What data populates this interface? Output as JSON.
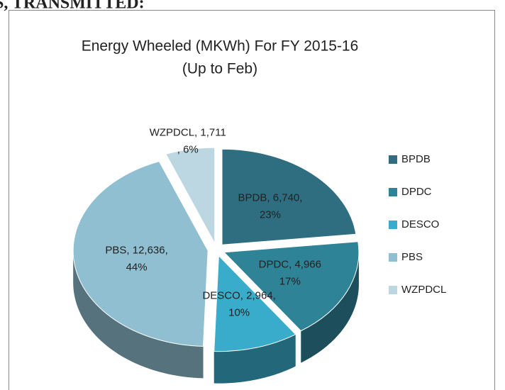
{
  "header_text": "S, TRANSMITTED:",
  "chart_data": {
    "type": "pie",
    "title": "Energy  Wheeled (MKWh) For FY 2015-16",
    "subtitle": "(Up to Feb)",
    "categories": [
      "BPDB",
      "DPDC",
      "DESCO",
      "PBS",
      "WZPDCL"
    ],
    "values": [
      6740,
      4966,
      2964,
      12636,
      1711
    ],
    "data_labels": [
      [
        "BPDB, 6,740,",
        "23%"
      ],
      [
        "DPDC, 4,966",
        "17%"
      ],
      [
        "DESCO, 2,964,",
        "10%"
      ],
      [
        "PBS, 12,636,",
        "44%"
      ],
      [
        "WZPDCL, 1,711",
        ", 6%"
      ]
    ],
    "colors": [
      "#2e6e80",
      "#2f8397",
      "#3aaccb",
      "#8fbfd0",
      "#bcd7e1"
    ],
    "legend": "right"
  }
}
